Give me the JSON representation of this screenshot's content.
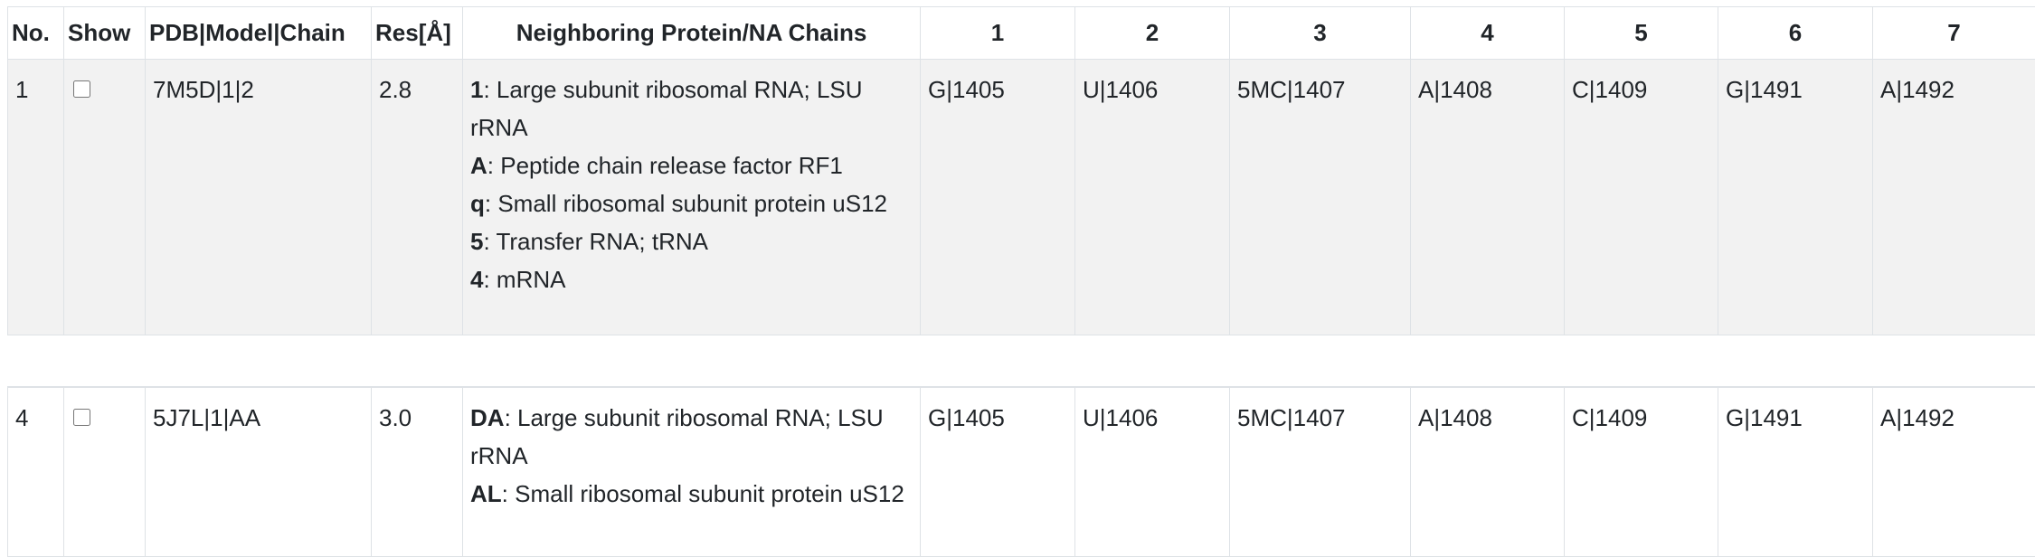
{
  "table": {
    "headers": {
      "no": "No.",
      "show": "Show",
      "pdb": "PDB|Model|Chain",
      "res": "Res[Å]",
      "neighbors": "Neighboring Protein/NA Chains",
      "c1": "1",
      "c2": "2",
      "c3": "3",
      "c4": "4",
      "c5": "5",
      "c6": "6",
      "c7": "7"
    },
    "rows": [
      {
        "no": "1",
        "show_checked": false,
        "pdb": "7M5D|1|2",
        "res": "2.8",
        "chains": [
          {
            "id": "1",
            "desc": ": Large subunit ribosomal RNA; LSU rRNA"
          },
          {
            "id": "A",
            "desc": ": Peptide chain release factor RF1"
          },
          {
            "id": "q",
            "desc": ": Small ribosomal subunit protein uS12"
          },
          {
            "id": "5",
            "desc": ": Transfer RNA; tRNA"
          },
          {
            "id": "4",
            "desc": ": mRNA"
          }
        ],
        "positions": [
          "G|1405",
          "U|1406",
          "5MC|1407",
          "A|1408",
          "C|1409",
          "G|1491",
          "A|1492"
        ]
      },
      {
        "no": "4",
        "show_checked": false,
        "pdb": "5J7L|1|AA",
        "res": "3.0",
        "chains": [
          {
            "id": "DA",
            "desc": ": Large subunit ribosomal RNA; LSU rRNA"
          },
          {
            "id": "AL",
            "desc": ": Small ribosomal subunit protein uS12"
          }
        ],
        "positions": [
          "G|1405",
          "U|1406",
          "5MC|1407",
          "A|1408",
          "C|1409",
          "G|1491",
          "A|1492"
        ]
      }
    ]
  }
}
